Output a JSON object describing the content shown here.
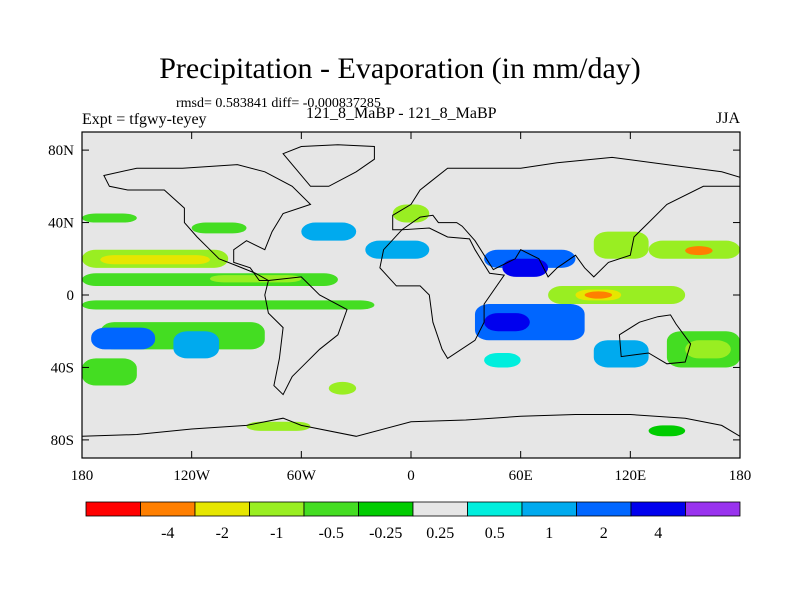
{
  "chart_data": {
    "type": "heatmap",
    "title": "Precipitation - Evaporation (in mm/day)",
    "stats_text": "rmsd= 0.583841 diff= -0.000837285",
    "left_label": "Expt = tfgwy-teyey",
    "center_label": "121_8_MaBP - 121_8_MaBP",
    "right_label": "JJA",
    "x_range": [
      -180,
      180
    ],
    "y_range": [
      -90,
      90
    ],
    "x_ticks": [
      {
        "value": -180,
        "label": "180"
      },
      {
        "value": -120,
        "label": "120W"
      },
      {
        "value": -60,
        "label": "60W"
      },
      {
        "value": 0,
        "label": "0"
      },
      {
        "value": 60,
        "label": "60E"
      },
      {
        "value": 120,
        "label": "120E"
      },
      {
        "value": 180,
        "label": "180"
      }
    ],
    "y_ticks": [
      {
        "value": 80,
        "label": "80N"
      },
      {
        "value": 40,
        "label": "40N"
      },
      {
        "value": 0,
        "label": "0"
      },
      {
        "value": -40,
        "label": "40S"
      },
      {
        "value": -80,
        "label": "80S"
      }
    ],
    "colorbar": {
      "colors": [
        "#ff0000",
        "#ff7f00",
        "#e6e600",
        "#99ee22",
        "#44dd22",
        "#00cc00",
        "#e6e6e6",
        "#00eedd",
        "#00aaee",
        "#0066ff",
        "#0000ee",
        "#9933ee"
      ],
      "labels": [
        "-4",
        "-2",
        "-1",
        "-0.5",
        "-0.25",
        "0.25",
        "0.5",
        "1",
        "2",
        "4"
      ]
    },
    "background_color": "#e6e6e6",
    "regions": [
      {
        "lon": [
          -180,
          -100
        ],
        "lat": [
          15,
          25
        ],
        "level": 3
      },
      {
        "lon": [
          -170,
          -110
        ],
        "lat": [
          17,
          22
        ],
        "level": 2
      },
      {
        "lon": [
          -180,
          -40
        ],
        "lat": [
          5,
          12
        ],
        "level": 4
      },
      {
        "lon": [
          -110,
          -60
        ],
        "lat": [
          7,
          11
        ],
        "level": 3
      },
      {
        "lon": [
          -180,
          -20
        ],
        "lat": [
          -8,
          -3
        ],
        "level": 4
      },
      {
        "lon": [
          -170,
          -80
        ],
        "lat": [
          -30,
          -15
        ],
        "level": 4
      },
      {
        "lon": [
          -175,
          -140
        ],
        "lat": [
          -30,
          -18
        ],
        "level": 9
      },
      {
        "lon": [
          -130,
          -105
        ],
        "lat": [
          -35,
          -20
        ],
        "level": 8
      },
      {
        "lon": [
          -180,
          -150
        ],
        "lat": [
          -50,
          -35
        ],
        "level": 4
      },
      {
        "lon": [
          -180,
          -150
        ],
        "lat": [
          40,
          45
        ],
        "level": 4
      },
      {
        "lon": [
          -120,
          -90
        ],
        "lat": [
          34,
          40
        ],
        "level": 4
      },
      {
        "lon": [
          -60,
          -30
        ],
        "lat": [
          30,
          40
        ],
        "level": 8
      },
      {
        "lon": [
          -25,
          10
        ],
        "lat": [
          20,
          30
        ],
        "level": 8
      },
      {
        "lon": [
          40,
          90
        ],
        "lat": [
          15,
          25
        ],
        "level": 9
      },
      {
        "lon": [
          50,
          75
        ],
        "lat": [
          10,
          20
        ],
        "level": 10
      },
      {
        "lon": [
          35,
          95
        ],
        "lat": [
          -25,
          -5
        ],
        "level": 9
      },
      {
        "lon": [
          40,
          65
        ],
        "lat": [
          -20,
          -10
        ],
        "level": 10
      },
      {
        "lon": [
          75,
          150
        ],
        "lat": [
          -5,
          5
        ],
        "level": 3
      },
      {
        "lon": [
          90,
          115
        ],
        "lat": [
          -3,
          3
        ],
        "level": 2
      },
      {
        "lon": [
          95,
          110
        ],
        "lat": [
          -2,
          2
        ],
        "level": 1
      },
      {
        "lon": [
          100,
          130
        ],
        "lat": [
          20,
          35
        ],
        "level": 3
      },
      {
        "lon": [
          130,
          180
        ],
        "lat": [
          20,
          30
        ],
        "level": 3
      },
      {
        "lon": [
          150,
          165
        ],
        "lat": [
          22,
          27
        ],
        "level": 1
      },
      {
        "lon": [
          100,
          130
        ],
        "lat": [
          -40,
          -25
        ],
        "level": 8
      },
      {
        "lon": [
          140,
          180
        ],
        "lat": [
          -40,
          -20
        ],
        "level": 4
      },
      {
        "lon": [
          150,
          175
        ],
        "lat": [
          -35,
          -25
        ],
        "level": 3
      },
      {
        "lon": [
          -90,
          -55
        ],
        "lat": [
          -75,
          -70
        ],
        "level": 3
      },
      {
        "lon": [
          -45,
          -30
        ],
        "lat": [
          -55,
          -48
        ],
        "level": 3
      },
      {
        "lon": [
          130,
          150
        ],
        "lat": [
          -78,
          -72
        ],
        "level": 5
      },
      {
        "lon": [
          40,
          60
        ],
        "lat": [
          -40,
          -32
        ],
        "level": 7
      },
      {
        "lon": [
          -10,
          10
        ],
        "lat": [
          40,
          50
        ],
        "level": 3
      }
    ],
    "coastlines": [
      {
        "name": "north-america",
        "points": [
          [
            -168,
            66
          ],
          [
            -150,
            70
          ],
          [
            -125,
            70
          ],
          [
            -95,
            72
          ],
          [
            -80,
            68
          ],
          [
            -65,
            60
          ],
          [
            -55,
            50
          ],
          [
            -70,
            45
          ],
          [
            -76,
            35
          ],
          [
            -80,
            25
          ],
          [
            -90,
            30
          ],
          [
            -97,
            25
          ],
          [
            -97,
            18
          ],
          [
            -88,
            15
          ],
          [
            -83,
            8
          ],
          [
            -78,
            8
          ],
          [
            -85,
            12
          ],
          [
            -95,
            16
          ],
          [
            -105,
            20
          ],
          [
            -110,
            25
          ],
          [
            -117,
            32
          ],
          [
            -124,
            40
          ],
          [
            -124,
            48
          ],
          [
            -135,
            58
          ],
          [
            -155,
            58
          ],
          [
            -165,
            60
          ],
          [
            -168,
            66
          ]
        ]
      },
      {
        "name": "south-america",
        "points": [
          [
            -78,
            8
          ],
          [
            -60,
            10
          ],
          [
            -50,
            0
          ],
          [
            -35,
            -8
          ],
          [
            -40,
            -22
          ],
          [
            -50,
            -30
          ],
          [
            -58,
            -38
          ],
          [
            -65,
            -45
          ],
          [
            -70,
            -55
          ],
          [
            -75,
            -50
          ],
          [
            -72,
            -35
          ],
          [
            -70,
            -18
          ],
          [
            -78,
            -10
          ],
          [
            -80,
            0
          ],
          [
            -78,
            8
          ]
        ]
      },
      {
        "name": "africa",
        "points": [
          [
            -17,
            15
          ],
          [
            -15,
            25
          ],
          [
            -5,
            36
          ],
          [
            10,
            37
          ],
          [
            20,
            32
          ],
          [
            32,
            31
          ],
          [
            35,
            25
          ],
          [
            43,
            12
          ],
          [
            51,
            11
          ],
          [
            40,
            -5
          ],
          [
            40,
            -15
          ],
          [
            35,
            -25
          ],
          [
            20,
            -35
          ],
          [
            17,
            -30
          ],
          [
            12,
            -15
          ],
          [
            10,
            0
          ],
          [
            5,
            5
          ],
          [
            -8,
            5
          ],
          [
            -17,
            15
          ]
        ]
      },
      {
        "name": "eurasia",
        "points": [
          [
            -10,
            36
          ],
          [
            -10,
            44
          ],
          [
            0,
            50
          ],
          [
            5,
            58
          ],
          [
            10,
            62
          ],
          [
            20,
            70
          ],
          [
            40,
            70
          ],
          [
            60,
            70
          ],
          [
            80,
            73
          ],
          [
            110,
            76
          ],
          [
            140,
            72
          ],
          [
            170,
            68
          ],
          [
            180,
            65
          ],
          [
            180,
            60
          ],
          [
            160,
            60
          ],
          [
            140,
            50
          ],
          [
            130,
            40
          ],
          [
            122,
            32
          ],
          [
            120,
            22
          ],
          [
            108,
            18
          ],
          [
            100,
            10
          ],
          [
            95,
            15
          ],
          [
            90,
            22
          ],
          [
            80,
            15
          ],
          [
            75,
            10
          ],
          [
            70,
            20
          ],
          [
            60,
            25
          ],
          [
            57,
            20
          ],
          [
            45,
            14
          ],
          [
            35,
            30
          ],
          [
            28,
            38
          ],
          [
            25,
            40
          ],
          [
            15,
            40
          ],
          [
            12,
            44
          ],
          [
            5,
            43
          ],
          [
            -5,
            36
          ],
          [
            -10,
            36
          ]
        ]
      },
      {
        "name": "greenland",
        "points": [
          [
            -55,
            60
          ],
          [
            -45,
            60
          ],
          [
            -30,
            68
          ],
          [
            -20,
            75
          ],
          [
            -20,
            82
          ],
          [
            -40,
            83
          ],
          [
            -60,
            82
          ],
          [
            -70,
            78
          ],
          [
            -55,
            60
          ]
        ]
      },
      {
        "name": "australia",
        "points": [
          [
            114,
            -22
          ],
          [
            125,
            -15
          ],
          [
            135,
            -12
          ],
          [
            142,
            -11
          ],
          [
            145,
            -16
          ],
          [
            153,
            -27
          ],
          [
            150,
            -37
          ],
          [
            140,
            -38
          ],
          [
            130,
            -32
          ],
          [
            115,
            -34
          ],
          [
            114,
            -22
          ]
        ]
      },
      {
        "name": "antarctica",
        "points": [
          [
            -180,
            -78
          ],
          [
            -150,
            -77
          ],
          [
            -120,
            -74
          ],
          [
            -90,
            -72
          ],
          [
            -70,
            -68
          ],
          [
            -60,
            -72
          ],
          [
            -30,
            -78
          ],
          [
            0,
            -70
          ],
          [
            30,
            -69
          ],
          [
            60,
            -67
          ],
          [
            90,
            -66
          ],
          [
            120,
            -66
          ],
          [
            150,
            -68
          ],
          [
            170,
            -72
          ],
          [
            180,
            -78
          ],
          [
            180,
            -90
          ],
          [
            -180,
            -90
          ],
          [
            -180,
            -78
          ]
        ]
      }
    ]
  }
}
